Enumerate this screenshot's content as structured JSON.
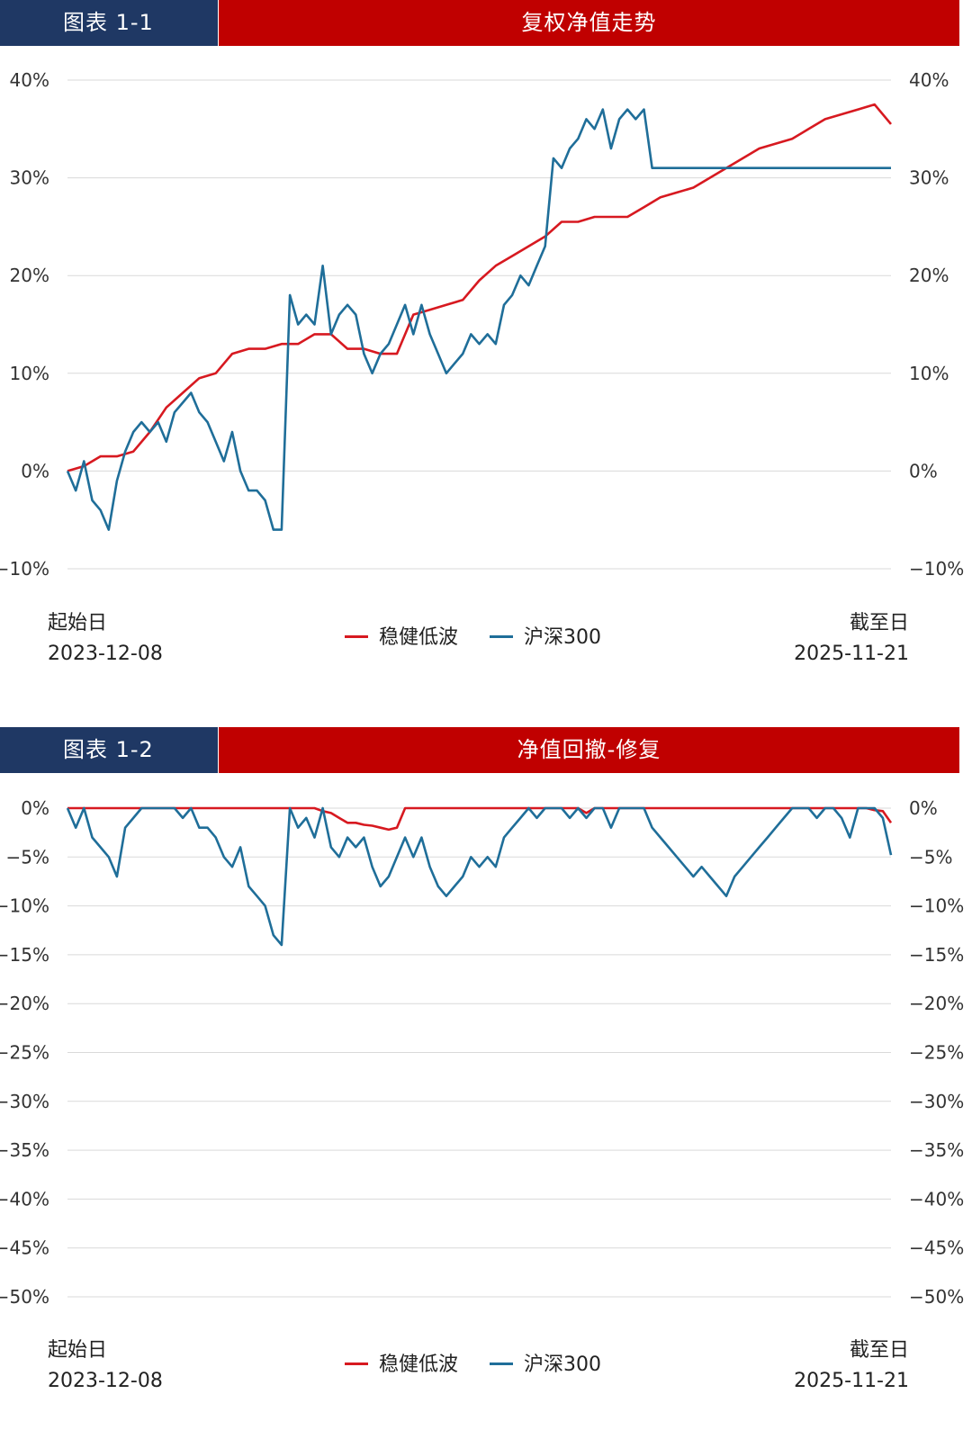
{
  "colors": {
    "header_left": "#1f3864",
    "header_right": "#c00000",
    "series_a": "#d71920",
    "series_b": "#1f6e99",
    "grid": "#d9d9d9"
  },
  "panels": [
    {
      "tag": "图表 1-1",
      "title": "复权净值走势",
      "start_label": "起始日",
      "start_date": "2023-12-08",
      "end_label": "截至日",
      "end_date": "2025-11-21",
      "legend": [
        "稳健低波",
        "沪深300"
      ]
    },
    {
      "tag": "图表 1-2",
      "title": "净值回撤-修复",
      "start_label": "起始日",
      "start_date": "2023-12-08",
      "end_label": "截至日",
      "end_date": "2025-11-21",
      "legend": [
        "稳健低波",
        "沪深300"
      ]
    }
  ],
  "chart_data": [
    {
      "type": "line",
      "title": "复权净值走势",
      "ylim": [
        -10,
        40
      ],
      "yticks": [
        -10,
        0,
        10,
        20,
        30,
        40
      ],
      "ytick_labels": [
        "−10%",
        "0%",
        "10%",
        "20%",
        "30%",
        "40%"
      ],
      "x_start": "2023-12-08",
      "x_end": "2025-11-21",
      "series": [
        {
          "name": "稳健低波",
          "x": [
            0,
            2,
            4,
            6,
            8,
            10,
            12,
            14,
            16,
            18,
            20,
            22,
            24,
            26,
            28,
            30,
            32,
            34,
            36,
            38,
            40,
            42,
            44,
            46,
            48,
            50,
            52,
            54,
            56,
            58,
            60,
            62,
            64,
            66,
            68,
            70,
            72,
            74,
            76,
            78,
            80,
            82,
            84,
            86,
            88,
            90,
            92,
            94,
            96,
            98,
            100
          ],
          "y": [
            0,
            0.5,
            1.5,
            1.5,
            2.0,
            4.0,
            6.5,
            8.0,
            9.5,
            10.0,
            12.0,
            12.5,
            12.5,
            13.0,
            13.0,
            14.0,
            14.0,
            12.5,
            12.5,
            12.0,
            12.0,
            16.0,
            16.5,
            17.0,
            17.5,
            19.5,
            21.0,
            22.0,
            23.0,
            24.0,
            25.5,
            25.5,
            26.0,
            26.0,
            26.0,
            27.0,
            28.0,
            28.5,
            29.0,
            30.0,
            31.0,
            32.0,
            33.0,
            33.5,
            34.0,
            35.0,
            36.0,
            36.5,
            37.0,
            37.5,
            35.5
          ]
        },
        {
          "name": "沪深300",
          "x": [
            0,
            1,
            2,
            3,
            4,
            5,
            6,
            7,
            8,
            9,
            10,
            11,
            12,
            13,
            14,
            15,
            16,
            17,
            18,
            19,
            20,
            21,
            22,
            23,
            24,
            25,
            26,
            27,
            28,
            29,
            30,
            31,
            32,
            33,
            34,
            35,
            36,
            37,
            38,
            39,
            40,
            41,
            42,
            43,
            44,
            45,
            46,
            47,
            48,
            49,
            50,
            51,
            52,
            53,
            54,
            55,
            56,
            57,
            58,
            59,
            60,
            61,
            62,
            63,
            64,
            65,
            66,
            67,
            68,
            69,
            70,
            71,
            72,
            73,
            74,
            75,
            76,
            77,
            78,
            79,
            80,
            81,
            82,
            83,
            84,
            85,
            86,
            87,
            88,
            89,
            90,
            91,
            92,
            93,
            94,
            95,
            96,
            97,
            98,
            99,
            100
          ],
          "y": [
            0,
            -2,
            1,
            -3,
            -4,
            -6,
            -1,
            2,
            4,
            5,
            4,
            5,
            3,
            6,
            7,
            8,
            6,
            5,
            3,
            1,
            4,
            0,
            -2,
            -2,
            -3,
            -6,
            -6,
            18,
            15,
            16,
            15,
            21,
            14,
            16,
            17,
            16,
            12,
            10,
            12,
            13,
            15,
            17,
            14,
            17,
            14,
            12,
            10,
            11,
            12,
            14,
            13,
            14,
            13,
            17,
            18,
            20,
            19,
            21,
            23,
            32,
            31,
            33,
            34,
            36,
            35,
            37,
            33,
            36,
            37,
            36,
            37,
            31,
            31,
            31,
            31,
            31,
            31,
            31,
            31,
            31,
            31,
            31,
            31,
            31,
            31,
            31,
            31,
            31,
            31,
            31,
            31,
            31,
            31,
            31,
            31,
            31,
            31,
            31,
            31,
            31,
            31
          ]
        }
      ]
    },
    {
      "type": "line",
      "title": "净值回撤-修复",
      "ylim": [
        -50,
        0
      ],
      "yticks": [
        0,
        -5,
        -10,
        -15,
        -20,
        -25,
        -30,
        -35,
        -40,
        -45,
        -50
      ],
      "ytick_labels": [
        "0%",
        "−5%",
        "−10%",
        "−15%",
        "−20%",
        "−25%",
        "−30%",
        "−35%",
        "−40%",
        "−45%",
        "−50%"
      ],
      "x_start": "2023-12-08",
      "x_end": "2025-11-21",
      "series": [
        {
          "name": "稳健低波",
          "x": [
            0,
            5,
            10,
            15,
            20,
            25,
            30,
            31,
            32,
            33,
            34,
            35,
            36,
            37,
            38,
            39,
            40,
            41,
            42,
            43,
            44,
            45,
            50,
            55,
            60,
            62,
            63,
            64,
            65,
            70,
            75,
            80,
            85,
            90,
            95,
            97,
            98,
            99,
            100
          ],
          "y": [
            0,
            0,
            0,
            0,
            0,
            0,
            0,
            -0.3,
            -0.5,
            -1.0,
            -1.5,
            -1.5,
            -1.7,
            -1.8,
            -2.0,
            -2.2,
            -2.0,
            0,
            0,
            0,
            0,
            0,
            0,
            0,
            0,
            0,
            -0.5,
            0,
            0,
            0,
            0,
            0,
            0,
            0,
            0,
            0,
            -0.2,
            -0.3,
            -1.5
          ]
        },
        {
          "name": "沪深300",
          "x": [
            0,
            1,
            2,
            3,
            4,
            5,
            6,
            7,
            8,
            9,
            10,
            11,
            12,
            13,
            14,
            15,
            16,
            17,
            18,
            19,
            20,
            21,
            22,
            23,
            24,
            25,
            26,
            27,
            28,
            29,
            30,
            31,
            32,
            33,
            34,
            35,
            36,
            37,
            38,
            39,
            40,
            41,
            42,
            43,
            44,
            45,
            46,
            47,
            48,
            49,
            50,
            51,
            52,
            53,
            54,
            55,
            56,
            57,
            58,
            59,
            60,
            61,
            62,
            63,
            64,
            65,
            66,
            67,
            68,
            69,
            70,
            71,
            72,
            73,
            74,
            75,
            76,
            77,
            78,
            79,
            80,
            81,
            82,
            83,
            84,
            85,
            86,
            87,
            88,
            89,
            90,
            91,
            92,
            93,
            94,
            95,
            96,
            97,
            98,
            99,
            100
          ],
          "y": [
            0,
            -2,
            0,
            -3,
            -4,
            -5,
            -7,
            -2,
            -1,
            0,
            0,
            0,
            0,
            0,
            -1,
            0,
            -2,
            -2,
            -3,
            -5,
            -6,
            -4,
            -8,
            -9,
            -10,
            -13,
            -14,
            0,
            -2,
            -1,
            -3,
            0,
            -4,
            -5,
            -3,
            -4,
            -3,
            -6,
            -8,
            -7,
            -5,
            -3,
            -5,
            -3,
            -6,
            -8,
            -9,
            -8,
            -7,
            -5,
            -6,
            -5,
            -6,
            -3,
            -2,
            -1,
            0,
            -1,
            0,
            0,
            0,
            -1,
            0,
            -1,
            0,
            0,
            -2,
            0,
            0,
            0,
            0,
            -2,
            -3,
            -4,
            -5,
            -6,
            -7,
            -6,
            -7,
            -8,
            -9,
            -7,
            -6,
            -5,
            -4,
            -3,
            -2,
            -1,
            0,
            0,
            0,
            -1,
            0,
            0,
            -1,
            -3,
            0,
            0,
            0,
            -1,
            -4.8
          ]
        }
      ]
    }
  ]
}
